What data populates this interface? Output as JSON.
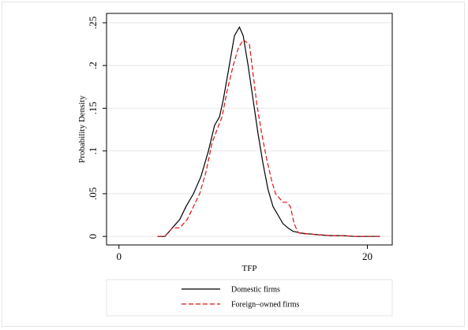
{
  "chart_data": {
    "type": "line",
    "title": "",
    "xlabel": "TFP",
    "ylabel": "Probability Density",
    "xlim": [
      -1,
      22
    ],
    "ylim": [
      -0.01,
      0.261
    ],
    "xticks": [
      0,
      20
    ],
    "xtick_labels": [
      "0",
      "20"
    ],
    "yticks": [
      0,
      0.05,
      0.1,
      0.15,
      0.2,
      0.25
    ],
    "ytick_labels": [
      "0",
      ".05",
      ".1",
      ".15",
      ".2",
      ".25"
    ],
    "grid": true,
    "legend_position": "bottom",
    "colors": {
      "domestic": "#000000",
      "foreign": "#e01010",
      "grid": "#e8e8e8"
    },
    "series": [
      {
        "name": "Domestic firms",
        "style": "solid",
        "x": [
          3.1,
          3.7,
          4.3,
          4.9,
          5.4,
          6.0,
          6.6,
          7.2,
          7.7,
          8.1,
          8.4,
          8.7,
          9.0,
          9.3,
          9.7,
          10.0,
          10.4,
          10.8,
          11.2,
          11.6,
          12.0,
          12.4,
          12.8,
          13.2,
          13.6,
          14.0,
          14.6,
          15.2,
          16.0,
          17.0,
          18.0,
          19.0,
          20.0,
          21.0
        ],
        "y": [
          0.0,
          0.0,
          0.01,
          0.02,
          0.035,
          0.05,
          0.07,
          0.1,
          0.13,
          0.14,
          0.16,
          0.185,
          0.21,
          0.235,
          0.245,
          0.235,
          0.2,
          0.16,
          0.12,
          0.085,
          0.055,
          0.035,
          0.025,
          0.015,
          0.01,
          0.006,
          0.004,
          0.003,
          0.002,
          0.001,
          0.001,
          0.0,
          0.0,
          0.0
        ]
      },
      {
        "name": "Foreign–owned firms",
        "style": "dashed",
        "x": [
          3.1,
          3.7,
          4.3,
          4.9,
          5.5,
          6.0,
          6.5,
          7.0,
          7.5,
          7.9,
          8.3,
          8.7,
          9.2,
          9.6,
          10.0,
          10.5,
          10.8,
          11.1,
          11.5,
          11.9,
          12.3,
          12.6,
          12.9,
          13.2,
          13.5,
          13.8,
          14.1,
          14.4,
          14.7,
          15.2,
          16.0,
          17.0,
          18.0,
          19.0,
          20.0,
          21.0
        ],
        "y": [
          0.0,
          0.0,
          0.01,
          0.01,
          0.02,
          0.035,
          0.05,
          0.075,
          0.11,
          0.125,
          0.14,
          0.17,
          0.2,
          0.22,
          0.23,
          0.225,
          0.19,
          0.155,
          0.12,
          0.09,
          0.065,
          0.05,
          0.045,
          0.04,
          0.04,
          0.035,
          0.015,
          0.005,
          0.003,
          0.003,
          0.002,
          0.001,
          0.001,
          0.0,
          0.0,
          0.0
        ]
      }
    ]
  }
}
